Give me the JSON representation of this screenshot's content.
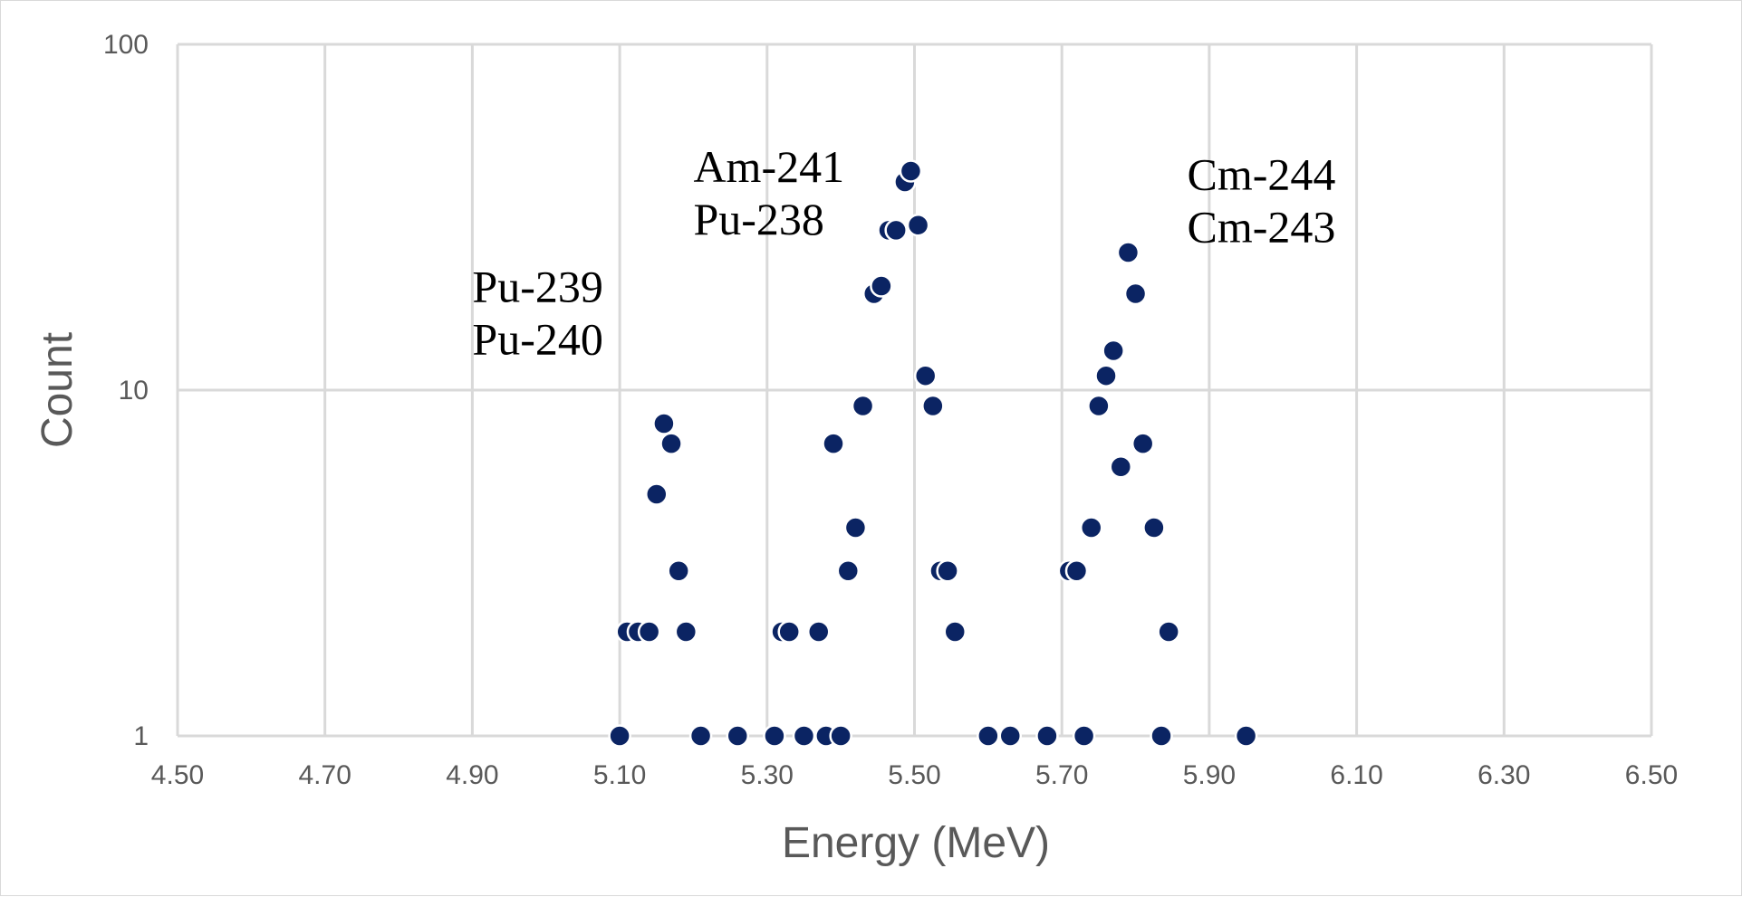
{
  "chart_data": {
    "type": "scatter",
    "title": "",
    "xlabel": "Energy (MeV)",
    "ylabel": "Count",
    "xlim": [
      4.5,
      6.5
    ],
    "ylim": [
      1,
      100
    ],
    "y_scale": "log",
    "grid": true,
    "legend": "none",
    "x_ticks": [
      "4.50",
      "4.70",
      "4.90",
      "5.10",
      "5.30",
      "5.50",
      "5.70",
      "5.90",
      "6.10",
      "6.30",
      "6.50"
    ],
    "y_ticks": [
      "1",
      "10",
      "100"
    ],
    "marker_color": "#0b2463",
    "annotations": [
      {
        "lines": [
          "Pu-239",
          "Pu-240"
        ],
        "x": 4.9,
        "y": 18
      },
      {
        "lines": [
          "Am-241",
          "Pu-238"
        ],
        "x": 5.2,
        "y": 40
      },
      {
        "lines": [
          "Cm-244",
          "Cm-243"
        ],
        "x": 5.87,
        "y": 38
      }
    ],
    "points": [
      {
        "x": 5.1,
        "y": 1
      },
      {
        "x": 5.11,
        "y": 2
      },
      {
        "x": 5.125,
        "y": 2
      },
      {
        "x": 5.14,
        "y": 2
      },
      {
        "x": 5.15,
        "y": 5
      },
      {
        "x": 5.16,
        "y": 8
      },
      {
        "x": 5.17,
        "y": 7
      },
      {
        "x": 5.18,
        "y": 3
      },
      {
        "x": 5.19,
        "y": 2
      },
      {
        "x": 5.21,
        "y": 1
      },
      {
        "x": 5.26,
        "y": 1
      },
      {
        "x": 5.31,
        "y": 1
      },
      {
        "x": 5.32,
        "y": 2
      },
      {
        "x": 5.33,
        "y": 2
      },
      {
        "x": 5.35,
        "y": 1
      },
      {
        "x": 5.37,
        "y": 2
      },
      {
        "x": 5.38,
        "y": 1
      },
      {
        "x": 5.39,
        "y": 7
      },
      {
        "x": 5.4,
        "y": 1
      },
      {
        "x": 5.41,
        "y": 3
      },
      {
        "x": 5.42,
        "y": 4
      },
      {
        "x": 5.43,
        "y": 9
      },
      {
        "x": 5.445,
        "y": 19
      },
      {
        "x": 5.455,
        "y": 20
      },
      {
        "x": 5.465,
        "y": 29
      },
      {
        "x": 5.475,
        "y": 29
      },
      {
        "x": 5.487,
        "y": 40
      },
      {
        "x": 5.495,
        "y": 43
      },
      {
        "x": 5.505,
        "y": 30
      },
      {
        "x": 5.515,
        "y": 11
      },
      {
        "x": 5.525,
        "y": 9
      },
      {
        "x": 5.535,
        "y": 3
      },
      {
        "x": 5.545,
        "y": 3
      },
      {
        "x": 5.555,
        "y": 2
      },
      {
        "x": 5.6,
        "y": 1
      },
      {
        "x": 5.63,
        "y": 1
      },
      {
        "x": 5.68,
        "y": 1
      },
      {
        "x": 5.71,
        "y": 3
      },
      {
        "x": 5.72,
        "y": 3
      },
      {
        "x": 5.73,
        "y": 1
      },
      {
        "x": 5.74,
        "y": 4
      },
      {
        "x": 5.75,
        "y": 9
      },
      {
        "x": 5.76,
        "y": 11
      },
      {
        "x": 5.77,
        "y": 13
      },
      {
        "x": 5.78,
        "y": 6
      },
      {
        "x": 5.79,
        "y": 25
      },
      {
        "x": 5.8,
        "y": 19
      },
      {
        "x": 5.81,
        "y": 7
      },
      {
        "x": 5.825,
        "y": 4
      },
      {
        "x": 5.835,
        "y": 1
      },
      {
        "x": 5.845,
        "y": 2
      },
      {
        "x": 5.95,
        "y": 1
      }
    ]
  }
}
